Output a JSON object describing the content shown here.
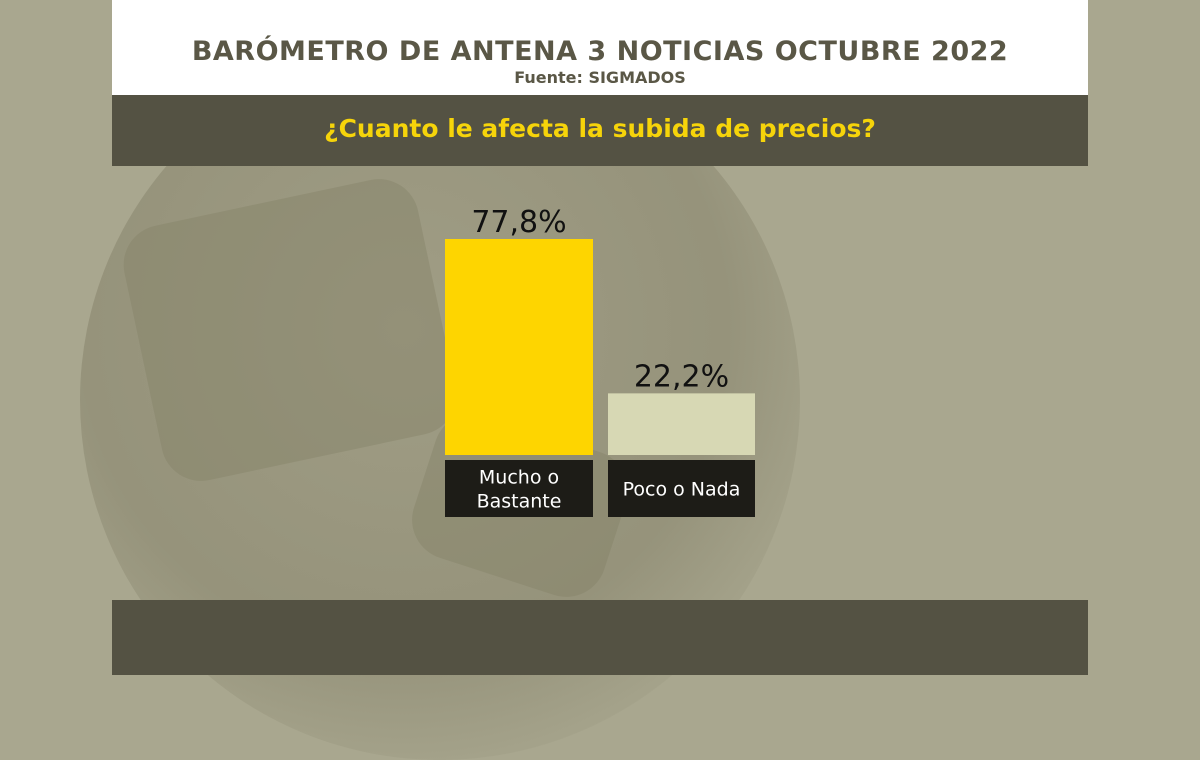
{
  "header": {
    "title": "BARÓMETRO DE ANTENA 3 NOTICIAS OCTUBRE 2022",
    "source": "Fuente: SIGMADOS"
  },
  "question": "¿Cuanto le afecta la subida de precios?",
  "chart_data": {
    "type": "bar",
    "categories": [
      [
        "Mucho o",
        "Bastante"
      ],
      [
        "Poco o Nada"
      ]
    ],
    "values": [
      77.8,
      22.2
    ],
    "value_labels": [
      "77,8%",
      "22,2%"
    ],
    "colors": [
      "#fed500",
      "#d7d8b4"
    ],
    "ylim": [
      0,
      77.8
    ],
    "grid": false
  }
}
